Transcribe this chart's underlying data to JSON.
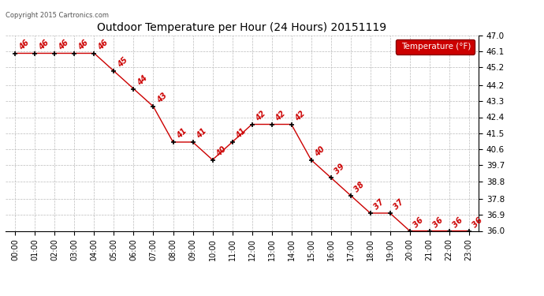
{
  "title": "Outdoor Temperature per Hour (24 Hours) 20151119",
  "copyright_text": "Copyright 2015 Cartronics.com",
  "legend_label": "Temperature (°F)",
  "hours": [
    0,
    1,
    2,
    3,
    4,
    5,
    6,
    7,
    8,
    9,
    10,
    11,
    12,
    13,
    14,
    15,
    16,
    17,
    18,
    19,
    20,
    21,
    22,
    23
  ],
  "temps": [
    46,
    46,
    46,
    46,
    46,
    45,
    44,
    43,
    41,
    41,
    40,
    41,
    42,
    42,
    42,
    40,
    39,
    38,
    37,
    37,
    36,
    36,
    36,
    36
  ],
  "ylim": [
    36.0,
    47.0
  ],
  "yticks": [
    36.0,
    36.9,
    37.8,
    38.8,
    39.7,
    40.6,
    41.5,
    42.4,
    43.3,
    44.2,
    45.2,
    46.1,
    47.0
  ],
  "line_color": "#cc0000",
  "marker_color": "#000000",
  "label_color": "#cc0000",
  "bg_color": "#ffffff",
  "grid_color": "#bbbbbb",
  "title_color": "#000000",
  "legend_bg": "#cc0000",
  "legend_text_color": "#ffffff",
  "figsize": [
    6.9,
    3.75
  ],
  "dpi": 100
}
